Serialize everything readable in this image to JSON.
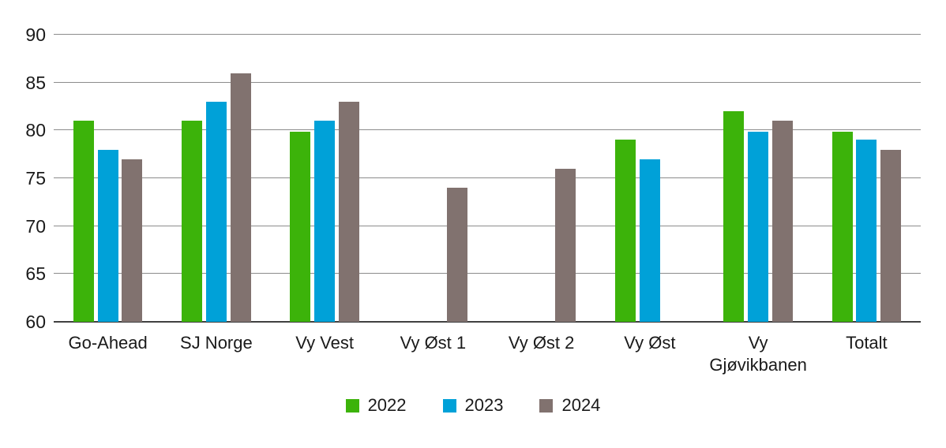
{
  "chart_data": {
    "type": "bar",
    "title": "",
    "xlabel": "",
    "ylabel": "",
    "categories": [
      "Go-Ahead",
      "SJ Norge",
      "Vy Vest",
      "Vy Øst 1",
      "Vy Øst 2",
      "Vy Øst",
      "Vy Gjøvikbanen",
      "Totalt"
    ],
    "series": [
      {
        "name": "2022",
        "color": "#3cb30a",
        "values": [
          81,
          81,
          79.9,
          null,
          null,
          79,
          82,
          79.9
        ]
      },
      {
        "name": "2023",
        "color": "#00a1d8",
        "values": [
          78,
          83,
          81,
          null,
          null,
          77,
          79.9,
          79
        ]
      },
      {
        "name": "2024",
        "color": "#81726f",
        "values": [
          77,
          86,
          83,
          74,
          76,
          null,
          81,
          78
        ]
      }
    ],
    "ylim": [
      60,
      90
    ],
    "yticks": [
      60,
      65,
      70,
      75,
      80,
      85,
      90
    ],
    "grid": true,
    "legend_position": "bottom"
  },
  "colors": {
    "gridline": "#8c8c8c",
    "baseline": "#404040",
    "text": "#1a1a1a",
    "background": "#ffffff"
  }
}
